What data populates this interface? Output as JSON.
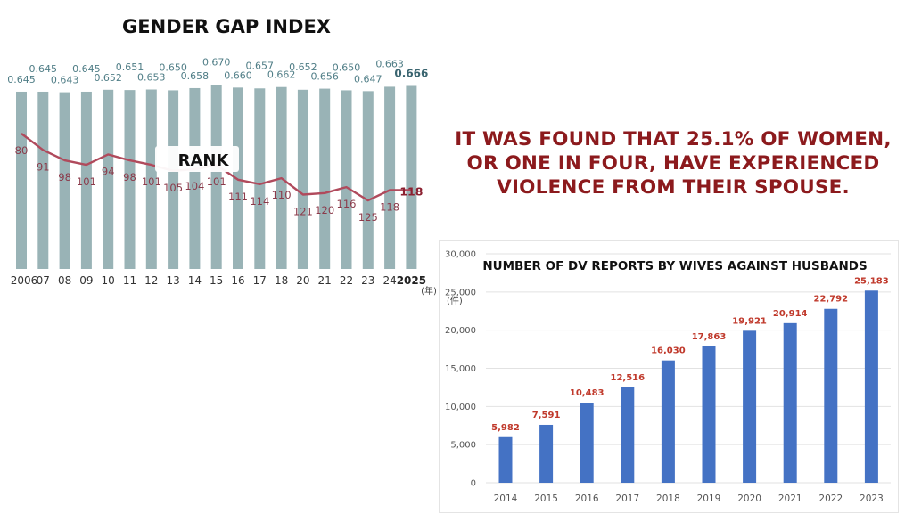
{
  "headline": "IT WAS FOUND THAT 25.1% OF WOMEN, OR ONE IN FOUR, HAVE EXPERIENCED VIOLENCE FROM THEIR SPOUSE.",
  "colors": {
    "gap_bar": "#99b3b6",
    "rank_line": "#b04a5c",
    "dv_bar": "#4472c4",
    "dv_label": "#c0392b",
    "headline": "#8c1a1d"
  },
  "chart_data": [
    {
      "type": "bar",
      "title": "GENDER GAP INDEX",
      "categories": [
        "2006",
        "07",
        "08",
        "09",
        "10",
        "11",
        "12",
        "13",
        "14",
        "15",
        "16",
        "17",
        "18",
        "20",
        "21",
        "22",
        "23",
        "24",
        "2025"
      ],
      "values": [
        0.645,
        0.645,
        0.643,
        0.645,
        0.652,
        0.651,
        0.653,
        0.65,
        0.658,
        0.67,
        0.66,
        0.657,
        0.662,
        0.652,
        0.656,
        0.65,
        0.647,
        0.663,
        0.666
      ],
      "value_labels": [
        "0.645",
        "0.645",
        "0.643",
        "0.645",
        "0.652",
        "0.651",
        "0.653",
        "0.650",
        "0.658",
        "0.670",
        "0.660",
        "0.657",
        "0.662",
        "0.652",
        "0.656",
        "0.650",
        "0.647",
        "0.663",
        "0.666"
      ],
      "xunit": "(年)",
      "overlay_line": {
        "name": "RANK",
        "values": [
          80,
          91,
          98,
          101,
          94,
          98,
          101,
          105,
          104,
          101,
          111,
          114,
          110,
          121,
          120,
          116,
          125,
          118,
          118
        ],
        "value_labels": [
          "80",
          "91",
          "98",
          "101",
          "94",
          "98",
          "101",
          "105",
          "104",
          "101",
          "111",
          "114",
          "110",
          "121",
          "120",
          "116",
          "125",
          "118",
          "118"
        ],
        "ylim": [
          60,
          175
        ]
      },
      "ylim": [
        0,
        0.7
      ]
    },
    {
      "type": "bar",
      "title": "NUMBER OF DV REPORTS BY WIVES AGAINST HUSBANDS",
      "categories": [
        "2014",
        "2015",
        "2016",
        "2017",
        "2018",
        "2019",
        "2020",
        "2021",
        "2022",
        "2023"
      ],
      "values": [
        5982,
        7591,
        10483,
        12516,
        16030,
        17863,
        19921,
        20914,
        22792,
        25183
      ],
      "value_labels": [
        "5,982",
        "7,591",
        "10,483",
        "12,516",
        "16,030",
        "17,863",
        "19,921",
        "20,914",
        "22,792",
        "25,183"
      ],
      "yticks": [
        "0",
        "5,000",
        "10,000",
        "15,000",
        "20,000",
        "25,000",
        "30,000"
      ],
      "yunit": "(件)",
      "ylim": [
        0,
        30000
      ]
    }
  ]
}
